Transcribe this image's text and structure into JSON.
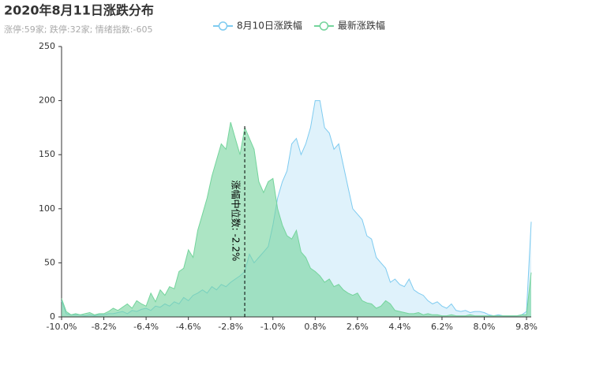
{
  "chart_data": {
    "type": "area",
    "title": "2020年8月11日涨跌分布",
    "subtitle": "涨停:59家; 跌停:32家; 情绪指数:-605",
    "x": [
      -10,
      -9.8,
      -9.6,
      -9.4,
      -9.2,
      -9,
      -8.8,
      -8.6,
      -8.4,
      -8.2,
      -8,
      -7.8,
      -7.6,
      -7.4,
      -7.2,
      -7,
      -6.8,
      -6.6,
      -6.4,
      -6.2,
      -6,
      -5.8,
      -5.6,
      -5.4,
      -5.2,
      -5,
      -4.8,
      -4.6,
      -4.4,
      -4.2,
      -4,
      -3.8,
      -3.6,
      -3.4,
      -3.2,
      -3,
      -2.8,
      -2.6,
      -2.4,
      -2.2,
      -2,
      -1.8,
      -1.6,
      -1.4,
      -1.2,
      -1,
      -0.8,
      -0.6,
      -0.4,
      -0.2,
      0,
      0.2,
      0.4,
      0.6,
      0.8,
      1,
      1.2,
      1.4,
      1.6,
      1.8,
      2,
      2.2,
      2.4,
      2.6,
      2.8,
      3,
      3.2,
      3.4,
      3.6,
      3.8,
      4,
      4.2,
      4.4,
      4.6,
      4.8,
      5,
      5.2,
      5.4,
      5.6,
      5.8,
      6,
      6.2,
      6.4,
      6.6,
      6.8,
      7,
      7.2,
      7.4,
      7.6,
      7.8,
      8,
      8.2,
      8.4,
      8.6,
      8.8,
      9,
      9.2,
      9.4,
      9.6,
      9.8,
      10
    ],
    "series": [
      {
        "name": "8月10日涨跌幅",
        "color": "#7ecbf0",
        "fill": "rgba(126,203,240,0.25)",
        "values": [
          15,
          3,
          2,
          2,
          2,
          1,
          2,
          1,
          2,
          2,
          3,
          3,
          4,
          5,
          3,
          6,
          5,
          7,
          8,
          6,
          10,
          9,
          12,
          10,
          14,
          12,
          18,
          15,
          20,
          22,
          25,
          22,
          28,
          25,
          30,
          28,
          32,
          35,
          38,
          42,
          58,
          50,
          55,
          60,
          65,
          85,
          110,
          125,
          135,
          160,
          165,
          150,
          160,
          175,
          200,
          200,
          175,
          170,
          155,
          160,
          140,
          120,
          100,
          95,
          90,
          75,
          72,
          55,
          50,
          45,
          32,
          35,
          30,
          28,
          35,
          25,
          22,
          20,
          15,
          12,
          14,
          10,
          8,
          12,
          6,
          5,
          6,
          4,
          5,
          5,
          4,
          2,
          1,
          2,
          1,
          1,
          1,
          1,
          2,
          5,
          88
        ]
      },
      {
        "name": "最新涨跌幅",
        "color": "#74d49c",
        "fill": "rgba(116,212,156,0.6)",
        "values": [
          17,
          5,
          2,
          3,
          2,
          3,
          4,
          2,
          3,
          3,
          5,
          8,
          6,
          9,
          12,
          8,
          15,
          12,
          10,
          22,
          14,
          25,
          20,
          28,
          26,
          42,
          45,
          62,
          55,
          80,
          95,
          110,
          130,
          145,
          160,
          155,
          180,
          165,
          150,
          175,
          165,
          155,
          125,
          115,
          125,
          128,
          100,
          85,
          75,
          72,
          80,
          60,
          55,
          45,
          42,
          38,
          32,
          35,
          28,
          30,
          25,
          22,
          20,
          22,
          15,
          13,
          12,
          8,
          10,
          15,
          12,
          6,
          5,
          4,
          3,
          3,
          4,
          2,
          3,
          2,
          2,
          1,
          1,
          2,
          1,
          1,
          1,
          2,
          1,
          1,
          1,
          1,
          1,
          1,
          1,
          1,
          1,
          1,
          2,
          2,
          41
        ]
      }
    ],
    "markline": {
      "x": -2.2,
      "y": 178,
      "label": "涨幅中位数: -2.2%"
    },
    "xlim": [
      -10,
      10
    ],
    "xticks": [
      {
        "value": -10,
        "label": "-10.0%"
      },
      {
        "value": -8.2,
        "label": "-8.2%"
      },
      {
        "value": -6.4,
        "label": "-6.4%"
      },
      {
        "value": -4.6,
        "label": "-4.6%"
      },
      {
        "value": -2.8,
        "label": "-2.8%"
      },
      {
        "value": -1,
        "label": "-1.0%"
      },
      {
        "value": 0.8,
        "label": "0.8%"
      },
      {
        "value": 2.6,
        "label": "2.6%"
      },
      {
        "value": 4.4,
        "label": "4.4%"
      },
      {
        "value": 6.2,
        "label": "6.2%"
      },
      {
        "value": 8,
        "label": "8.0%"
      },
      {
        "value": 9.8,
        "label": "9.8%"
      }
    ],
    "ylim": [
      0,
      250
    ],
    "yticks": [
      0,
      50,
      100,
      150,
      200,
      250
    ]
  }
}
